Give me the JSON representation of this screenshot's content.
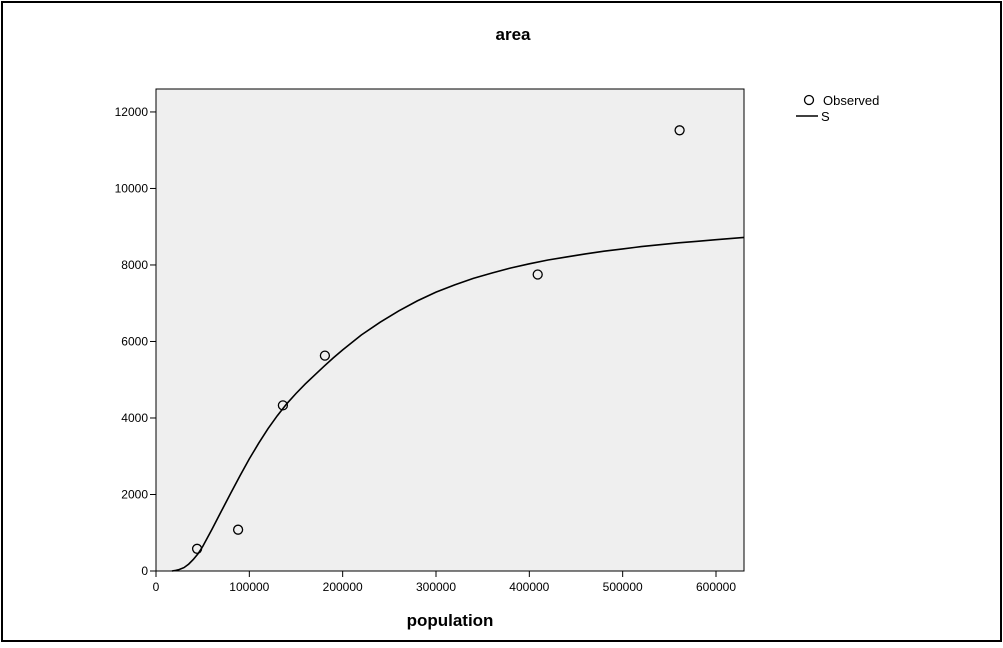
{
  "chart_data": {
    "type": "scatter",
    "title": "area",
    "xlabel": "population",
    "ylabel": "",
    "xlim": [
      0,
      630000
    ],
    "ylim": [
      0,
      12600
    ],
    "xticks": [
      0,
      100000,
      200000,
      300000,
      400000,
      500000,
      600000
    ],
    "yticks": [
      0,
      2000,
      4000,
      6000,
      8000,
      10000,
      12000
    ],
    "xtick_labels": [
      "0",
      "100000",
      "200000",
      "300000",
      "400000",
      "500000",
      "600000"
    ],
    "ytick_labels": [
      "0",
      "2000",
      "4000",
      "6000",
      "8000",
      "10000",
      "12000"
    ],
    "grid": false,
    "legend_position": "right",
    "series": [
      {
        "name": "Observed",
        "kind": "scatter",
        "marker": "open-circle",
        "x": [
          44000,
          88000,
          136000,
          181000,
          409000,
          561000
        ],
        "y": [
          580,
          1080,
          4330,
          5630,
          7750,
          11520
        ]
      },
      {
        "name": "S",
        "kind": "line",
        "x": [
          17000,
          20000,
          25000,
          30000,
          35000,
          40000,
          45000,
          50000,
          60000,
          70000,
          80000,
          90000,
          100000,
          110000,
          120000,
          130000,
          140000,
          150000,
          160000,
          170000,
          180000,
          190000,
          200000,
          220000,
          240000,
          260000,
          280000,
          300000,
          320000,
          340000,
          360000,
          380000,
          400000,
          420000,
          440000,
          460000,
          480000,
          500000,
          520000,
          540000,
          560000,
          580000,
          600000,
          615000,
          630000
        ],
        "y": [
          0,
          10,
          40,
          90,
          180,
          300,
          450,
          640,
          1090,
          1560,
          2030,
          2490,
          2930,
          3340,
          3720,
          4060,
          4370,
          4640,
          4890,
          5120,
          5350,
          5570,
          5780,
          6170,
          6500,
          6800,
          7060,
          7290,
          7480,
          7650,
          7790,
          7920,
          8030,
          8130,
          8210,
          8290,
          8360,
          8420,
          8480,
          8530,
          8580,
          8620,
          8660,
          8690,
          8720
        ]
      }
    ],
    "colors": {
      "plot_background": "#efefef",
      "page_background": "#ffffff",
      "frame": "#000000",
      "line": "#000000",
      "marker": "#000000"
    }
  }
}
